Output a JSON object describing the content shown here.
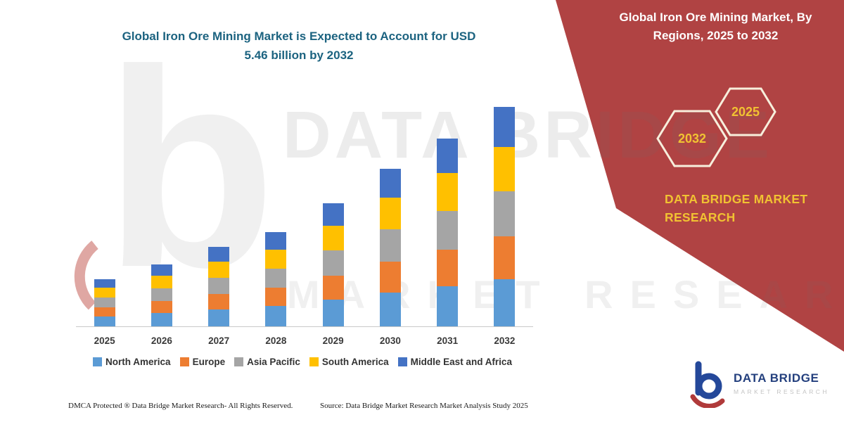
{
  "colors": {
    "panel_red": "#B04343",
    "brand_yellow": "#F1C232",
    "title_teal": "#1C6380"
  },
  "panel": {
    "title": "Global Iron Ore Mining Market, By Regions, 2025 to 2032",
    "hex_back_year": "2032",
    "hex_front_year": "2025",
    "brand_text": "DATA BRIDGE MARKET RESEARCH"
  },
  "chart": {
    "title_line1": "Global Iron Ore Mining Market is Expected to Account for USD",
    "title_line2": "5.46 billion by 2032"
  },
  "chart_data": {
    "type": "bar",
    "stacked": true,
    "title": "Global Iron Ore Mining Market is Expected to Account for USD 5.46 billion by 2032",
    "unit": "USD billion",
    "categories": [
      "2025",
      "2026",
      "2027",
      "2028",
      "2029",
      "2030",
      "2031",
      "2032"
    ],
    "series": [
      {
        "name": "North America",
        "color": "#5B9BD5",
        "values": [
          0.25,
          0.33,
          0.42,
          0.5,
          0.66,
          0.84,
          1.0,
          1.17
        ]
      },
      {
        "name": "Europe",
        "color": "#ED7D31",
        "values": [
          0.23,
          0.3,
          0.38,
          0.46,
          0.6,
          0.77,
          0.92,
          1.07
        ]
      },
      {
        "name": "Asia Pacific",
        "color": "#A5A5A5",
        "values": [
          0.24,
          0.32,
          0.4,
          0.48,
          0.63,
          0.8,
          0.96,
          1.12
        ]
      },
      {
        "name": "South America",
        "color": "#FFC000",
        "values": [
          0.24,
          0.31,
          0.4,
          0.47,
          0.62,
          0.79,
          0.95,
          1.1
        ]
      },
      {
        "name": "Middle East and Africa",
        "color": "#4472C4",
        "values": [
          0.21,
          0.28,
          0.36,
          0.43,
          0.57,
          0.72,
          0.86,
          1.0
        ]
      }
    ],
    "totals": [
      1.17,
      1.54,
      1.96,
      2.34,
      3.08,
      3.92,
      4.69,
      5.46
    ],
    "ylim": [
      0,
      5.5
    ],
    "y_axis_visible": false,
    "grid": false,
    "legend_position": "bottom"
  },
  "watermark": {
    "letter": "b",
    "line1": "DATA BRIDGE",
    "line2": "MARKET RESEARCH"
  },
  "footer": {
    "dmca": "DMCA Protected ® Data Bridge Market Research-  All Rights Reserved.",
    "source": "Source: Data Bridge Market Research  Market Analysis Study 2025"
  },
  "logo": {
    "name": "DATA BRIDGE",
    "tagline": "MARKET RESEARCH"
  }
}
